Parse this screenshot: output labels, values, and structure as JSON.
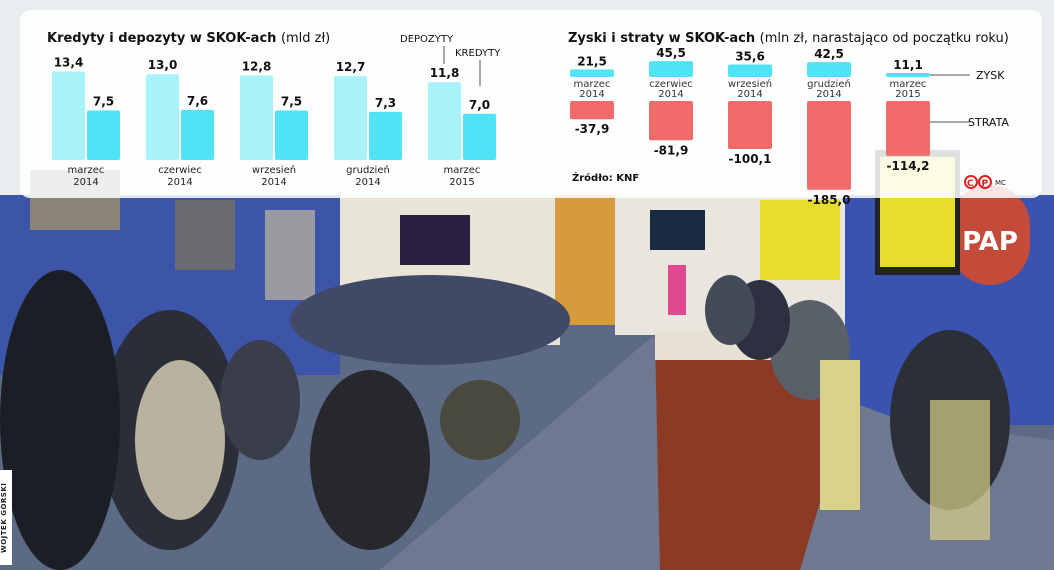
{
  "chart_data": [
    {
      "type": "bar",
      "title": "Kredyty i depozyty w SKOK-ach",
      "unit": "(mld zł)",
      "categories": [
        [
          "marzec",
          "2014"
        ],
        [
          "czerwiec",
          "2014"
        ],
        [
          "wrzesień",
          "2014"
        ],
        [
          "grudzień",
          "2014"
        ],
        [
          "marzec",
          "2015"
        ]
      ],
      "series": [
        {
          "name": "DEPOZYTY",
          "values": [
            13.4,
            13.0,
            12.8,
            12.7,
            11.8
          ],
          "labels": [
            "13,4",
            "13,0",
            "12,8",
            "12,7",
            "11,8"
          ],
          "color": "#a8f2fa"
        },
        {
          "name": "KREDYTY",
          "values": [
            7.5,
            7.6,
            7.5,
            7.3,
            7.0
          ],
          "labels": [
            "7,5",
            "7,6",
            "7,5",
            "7,3",
            "7,0"
          ],
          "color": "#4fe3f5"
        }
      ]
    },
    {
      "type": "bar",
      "title": "Zyski i straty w SKOK-ach",
      "unit": "(mln zł, narastająco od początku roku)",
      "categories": [
        [
          "marzec",
          "2014"
        ],
        [
          "czerwiec",
          "2014"
        ],
        [
          "wrzesień",
          "2014"
        ],
        [
          "grudzień",
          "2014"
        ],
        [
          "marzec",
          "2015"
        ]
      ],
      "series": [
        {
          "name": "ZYSK",
          "values": [
            21.5,
            45.5,
            35.6,
            42.5,
            11.1
          ],
          "labels": [
            "21,5",
            "45,5",
            "35,6",
            "42,5",
            "11,1"
          ],
          "color": "#4fe3f5"
        },
        {
          "name": "STRATA",
          "values": [
            -37.9,
            -81.9,
            -100.1,
            -185.0,
            -114.2
          ],
          "labels": [
            "-37,9",
            "-81,9",
            "-100,1",
            "-185,0",
            "-114,2"
          ],
          "color": "#f26b6b"
        }
      ],
      "source": "Źródło: KNF",
      "agency": "PAP",
      "author_mark": "MC"
    }
  ],
  "photo_credit": "WOJTEK GÓRSKI"
}
